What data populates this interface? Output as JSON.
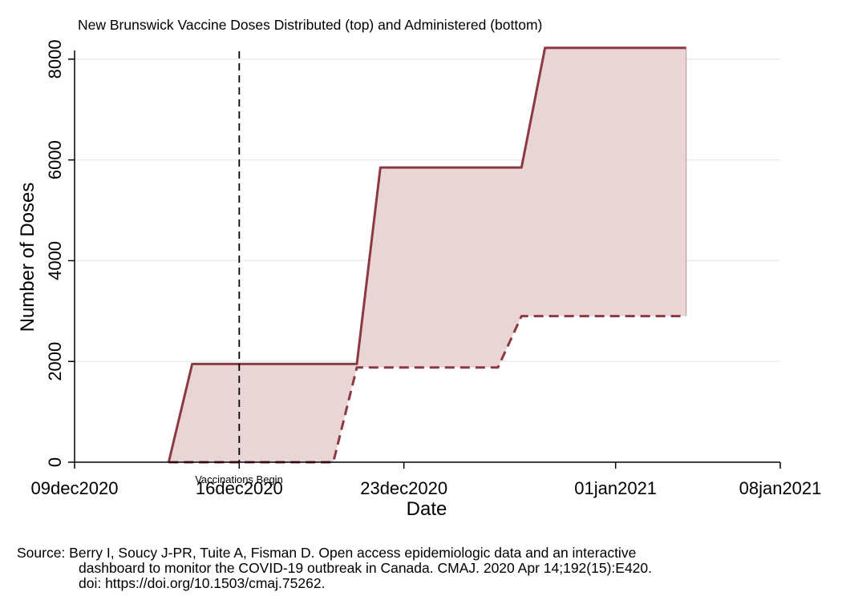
{
  "chart_data": {
    "type": "area",
    "title": "New Brunswick Vaccine Doses Distributed (top) and Administered (bottom)",
    "xlabel": "Date",
    "ylabel": "Number of Doses",
    "x_ticks": [
      "09dec2020",
      "16dec2020",
      "23dec2020",
      "01jan2021",
      "08jan2021"
    ],
    "y_ticks": [
      0,
      2000,
      4000,
      6000,
      8000
    ],
    "xlim": [
      "2020-12-09",
      "2021-01-08"
    ],
    "ylim": [
      0,
      8300
    ],
    "grid": "horizontal",
    "vline": {
      "x": "2020-12-16",
      "label": "Vaccinations Begin"
    },
    "colors": {
      "line": "#8b3a42",
      "fill": "#e9d4d6",
      "grid": "#e6eeee"
    },
    "series": [
      {
        "role": "distributed",
        "style": "solid",
        "points": [
          {
            "x": "2020-12-13",
            "y": 0
          },
          {
            "x": "2020-12-14",
            "y": 1950
          },
          {
            "x": "2020-12-21",
            "y": 1950
          },
          {
            "x": "2020-12-22",
            "y": 5850
          },
          {
            "x": "2020-12-28",
            "y": 5850
          },
          {
            "x": "2020-12-29",
            "y": 8225
          },
          {
            "x": "2021-01-04",
            "y": 8225
          }
        ]
      },
      {
        "role": "administered",
        "style": "dashed",
        "points": [
          {
            "x": "2020-12-13",
            "y": 0
          },
          {
            "x": "2020-12-20",
            "y": 0
          },
          {
            "x": "2020-12-21",
            "y": 1880
          },
          {
            "x": "2020-12-27",
            "y": 1880
          },
          {
            "x": "2020-12-28",
            "y": 2900
          },
          {
            "x": "2021-01-04",
            "y": 2900
          }
        ]
      }
    ]
  },
  "source": {
    "line1": "Source: Berry I, Soucy J-PR, Tuite A, Fisman D. Open access epidemiologic data and an interactive",
    "line2": "dashboard to monitor the COVID-19 outbreak in Canada. CMAJ. 2020 Apr 14;192(15):E420.",
    "line3": "doi: https://doi.org/10.1503/cmaj.75262."
  }
}
